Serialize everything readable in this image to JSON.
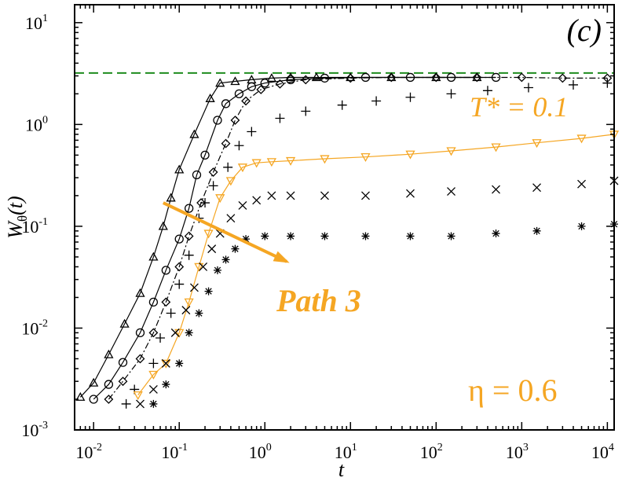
{
  "chart_data": {
    "type": "scatter",
    "panel_label": "(c)",
    "xlabel": "t",
    "ylabel": "W",
    "ylabel_sub": "θ",
    "ylabel_arg": "(t)",
    "xscale": "log",
    "yscale": "log",
    "xlim": [
      0.006,
      12000
    ],
    "ylim": [
      0.001,
      15
    ],
    "x_ticks": [
      {
        "value": 0.01,
        "base": "10",
        "exp": "-2"
      },
      {
        "value": 0.1,
        "base": "10",
        "exp": "-1"
      },
      {
        "value": 1,
        "base": "10",
        "exp": "0"
      },
      {
        "value": 10,
        "base": "10",
        "exp": "1"
      },
      {
        "value": 100,
        "base": "10",
        "exp": "2"
      },
      {
        "value": 1000,
        "base": "10",
        "exp": "3"
      },
      {
        "value": 10000,
        "base": "10",
        "exp": "4"
      }
    ],
    "y_ticks": [
      {
        "value": 0.001,
        "base": "10",
        "exp": "-3"
      },
      {
        "value": 0.01,
        "base": "10",
        "exp": "-2"
      },
      {
        "value": 0.1,
        "base": "10",
        "exp": "-1"
      },
      {
        "value": 1,
        "base": "10",
        "exp": "0"
      },
      {
        "value": 10,
        "base": "10",
        "exp": "1"
      }
    ],
    "reference_line": {
      "y": 3.2,
      "color": "#1f8c1f",
      "style": "dashed"
    },
    "annotations": {
      "temperature": "T* = 0.1",
      "path": "Path 3",
      "eta": "η = 0.6",
      "arrow": {
        "from": [
          0.065,
          0.17
        ],
        "to": [
          1.8,
          0.045
        ],
        "color": "#f5a623"
      }
    },
    "series": [
      {
        "marker": "triangle",
        "color": "#000000",
        "line": "solid",
        "points": [
          [
            0.007,
            0.0021
          ],
          [
            0.01,
            0.0029
          ],
          [
            0.015,
            0.0055
          ],
          [
            0.023,
            0.011
          ],
          [
            0.035,
            0.022
          ],
          [
            0.05,
            0.05
          ],
          [
            0.065,
            0.1
          ],
          [
            0.08,
            0.19
          ],
          [
            0.1,
            0.36
          ],
          [
            0.15,
            0.8
          ],
          [
            0.23,
            1.8
          ],
          [
            0.3,
            2.55
          ],
          [
            0.45,
            2.65
          ],
          [
            0.7,
            2.75
          ],
          [
            1.2,
            2.85
          ],
          [
            2,
            2.9
          ],
          [
            4,
            2.9
          ],
          [
            10,
            2.9
          ],
          [
            30,
            2.9
          ],
          [
            100,
            2.9
          ],
          [
            300,
            2.9
          ]
        ]
      },
      {
        "marker": "circle",
        "color": "#000000",
        "line": "solid",
        "points": [
          [
            0.01,
            0.002
          ],
          [
            0.015,
            0.0028
          ],
          [
            0.022,
            0.0046
          ],
          [
            0.035,
            0.009
          ],
          [
            0.05,
            0.018
          ],
          [
            0.07,
            0.037
          ],
          [
            0.1,
            0.075
          ],
          [
            0.13,
            0.15
          ],
          [
            0.16,
            0.32
          ],
          [
            0.2,
            0.5
          ],
          [
            0.28,
            1.1
          ],
          [
            0.35,
            1.6
          ],
          [
            0.5,
            2.0
          ],
          [
            0.7,
            2.35
          ],
          [
            1,
            2.55
          ],
          [
            2,
            2.75
          ],
          [
            5,
            2.85
          ],
          [
            15,
            2.9
          ],
          [
            50,
            2.9
          ],
          [
            150,
            2.9
          ],
          [
            500,
            2.9
          ]
        ]
      },
      {
        "marker": "diamond",
        "color": "#000000",
        "line": "dashdot",
        "points": [
          [
            0.015,
            0.002
          ],
          [
            0.022,
            0.003
          ],
          [
            0.035,
            0.005
          ],
          [
            0.05,
            0.009
          ],
          [
            0.07,
            0.018
          ],
          [
            0.1,
            0.04
          ],
          [
            0.13,
            0.08
          ],
          [
            0.18,
            0.17
          ],
          [
            0.25,
            0.34
          ],
          [
            0.35,
            0.65
          ],
          [
            0.45,
            1.1
          ],
          [
            0.6,
            1.7
          ],
          [
            0.9,
            2.2
          ],
          [
            1.5,
            2.5
          ],
          [
            3,
            2.75
          ],
          [
            10,
            2.85
          ],
          [
            30,
            2.9
          ],
          [
            100,
            2.9
          ],
          [
            300,
            2.9
          ],
          [
            1000,
            2.9
          ],
          [
            3000,
            2.85
          ],
          [
            10000,
            2.85
          ]
        ]
      },
      {
        "marker": "plus",
        "color": "#000000",
        "line": "none",
        "points": [
          [
            0.024,
            0.0018
          ],
          [
            0.03,
            0.0025
          ],
          [
            0.05,
            0.0045
          ],
          [
            0.06,
            0.008
          ],
          [
            0.08,
            0.014
          ],
          [
            0.1,
            0.027
          ],
          [
            0.13,
            0.052
          ],
          [
            0.17,
            0.12
          ],
          [
            0.2,
            0.17
          ],
          [
            0.25,
            0.25
          ],
          [
            0.37,
            0.38
          ],
          [
            0.5,
            0.62
          ],
          [
            0.7,
            0.85
          ],
          [
            1.5,
            1.15
          ],
          [
            3,
            1.35
          ],
          [
            8,
            1.55
          ],
          [
            20,
            1.7
          ],
          [
            50,
            1.85
          ],
          [
            150,
            2.0
          ],
          [
            400,
            2.15
          ],
          [
            1200,
            2.3
          ],
          [
            4000,
            2.45
          ],
          [
            10000,
            2.55
          ]
        ]
      },
      {
        "marker": "inverted-triangle",
        "color": "#f5a623",
        "line": "solid",
        "points": [
          [
            0.033,
            0.0022
          ],
          [
            0.05,
            0.0035
          ],
          [
            0.07,
            0.0045
          ],
          [
            0.1,
            0.009
          ],
          [
            0.13,
            0.018
          ],
          [
            0.17,
            0.04
          ],
          [
            0.22,
            0.085
          ],
          [
            0.3,
            0.19
          ],
          [
            0.4,
            0.28
          ],
          [
            0.55,
            0.38
          ],
          [
            0.8,
            0.42
          ],
          [
            1.2,
            0.43
          ],
          [
            2,
            0.44
          ],
          [
            5,
            0.46
          ],
          [
            15,
            0.48
          ],
          [
            50,
            0.51
          ],
          [
            150,
            0.55
          ],
          [
            500,
            0.6
          ],
          [
            1500,
            0.66
          ],
          [
            5000,
            0.73
          ],
          [
            12000,
            0.8
          ]
        ]
      },
      {
        "marker": "cross",
        "color": "#000000",
        "line": "none",
        "points": [
          [
            0.035,
            0.0018
          ],
          [
            0.05,
            0.0025
          ],
          [
            0.07,
            0.0045
          ],
          [
            0.09,
            0.009
          ],
          [
            0.12,
            0.015
          ],
          [
            0.15,
            0.025
          ],
          [
            0.19,
            0.04
          ],
          [
            0.24,
            0.06
          ],
          [
            0.3,
            0.085
          ],
          [
            0.4,
            0.12
          ],
          [
            0.55,
            0.16
          ],
          [
            0.8,
            0.18
          ],
          [
            1.2,
            0.2
          ],
          [
            2,
            0.2
          ],
          [
            5,
            0.2
          ],
          [
            15,
            0.2
          ],
          [
            50,
            0.21
          ],
          [
            150,
            0.22
          ],
          [
            500,
            0.23
          ],
          [
            1500,
            0.24
          ],
          [
            5000,
            0.26
          ],
          [
            12000,
            0.28
          ]
        ]
      },
      {
        "marker": "asterisk",
        "color": "#000000",
        "line": "none",
        "points": [
          [
            0.05,
            0.0018
          ],
          [
            0.07,
            0.0028
          ],
          [
            0.1,
            0.0045
          ],
          [
            0.13,
            0.009
          ],
          [
            0.17,
            0.014
          ],
          [
            0.22,
            0.023
          ],
          [
            0.28,
            0.037
          ],
          [
            0.35,
            0.047
          ],
          [
            0.45,
            0.06
          ],
          [
            0.6,
            0.075
          ],
          [
            1,
            0.08
          ],
          [
            2,
            0.08
          ],
          [
            5,
            0.08
          ],
          [
            15,
            0.08
          ],
          [
            50,
            0.08
          ],
          [
            150,
            0.08
          ],
          [
            500,
            0.085
          ],
          [
            1500,
            0.09
          ],
          [
            5000,
            0.1
          ],
          [
            12000,
            0.105
          ]
        ]
      }
    ]
  }
}
